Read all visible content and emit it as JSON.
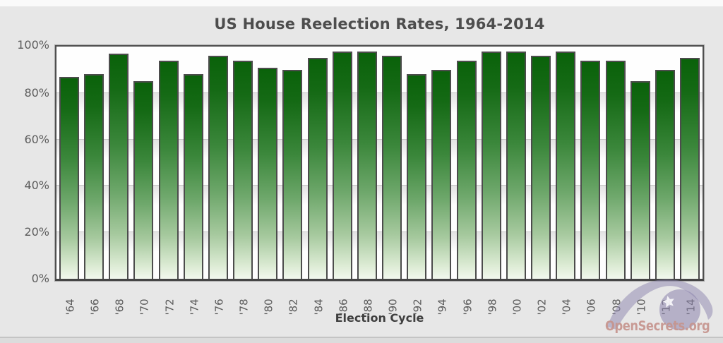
{
  "chart_data": {
    "type": "bar",
    "title": "US House Reelection Rates, 1964-2014",
    "xlabel": "Election Cycle",
    "ylabel": "",
    "ylim": [
      0,
      100
    ],
    "y_tick_labels": [
      "100%",
      "80%",
      "60%",
      "40%",
      "20%",
      "0%"
    ],
    "y_tick_values": [
      100,
      80,
      60,
      40,
      20,
      0
    ],
    "grid": "horizontal",
    "legend": "none",
    "categories": [
      "'64",
      "'66",
      "'68",
      "'70",
      "'72",
      "'74",
      "'76",
      "'78",
      "'80",
      "'82",
      "'84",
      "'86",
      "'88",
      "'90",
      "'92",
      "'94",
      "'96",
      "'98",
      "'00",
      "'02",
      "'04",
      "'06",
      "'08",
      "'10",
      "'12",
      "'14"
    ],
    "values": [
      87,
      88,
      97,
      85,
      94,
      88,
      96,
      94,
      91,
      90,
      95,
      98,
      98,
      96,
      88,
      90,
      94,
      98,
      98,
      96,
      98,
      94,
      94,
      85,
      90,
      95
    ],
    "colors": {
      "bar_top": "#0a620a",
      "bar_bottom": "#f2f8ee",
      "bar_border": "#4c4c4c",
      "frame_border": "#4f4f4f",
      "gridline": "#c8c8c8",
      "plot_background": "#fefefe",
      "page_background": "#e7e7e7",
      "title_text": "#4d4d4d",
      "axis_text": "#5c5c5c"
    }
  },
  "watermark": {
    "text": "OpenSecrets.org",
    "text_color": "#c6948e",
    "eye_color": "#8c84ad"
  }
}
